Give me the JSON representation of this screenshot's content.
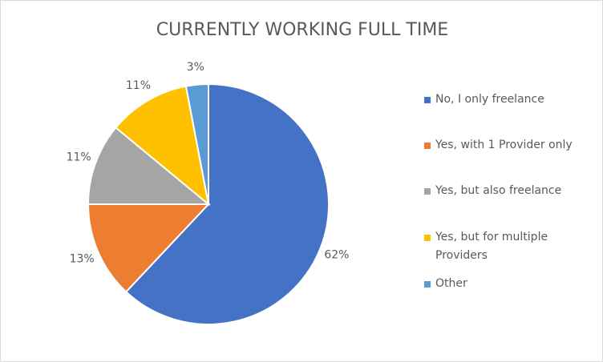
{
  "chart_data": {
    "type": "pie",
    "title": "CURRENTLY WORKING FULL TIME",
    "categories": [
      "No, I only freelance",
      "Yes, with 1 Provider only",
      "Yes, but also freelance",
      "Yes, but for multiple Providers",
      "Other"
    ],
    "values": [
      62,
      13,
      11,
      11,
      3
    ],
    "value_labels": [
      "62%",
      "13%",
      "11%",
      "11%",
      "3%"
    ],
    "colors": [
      "#4472c4",
      "#ed7d31",
      "#a5a5a5",
      "#ffc000",
      "#5b9bd5"
    ],
    "legend": "right"
  }
}
